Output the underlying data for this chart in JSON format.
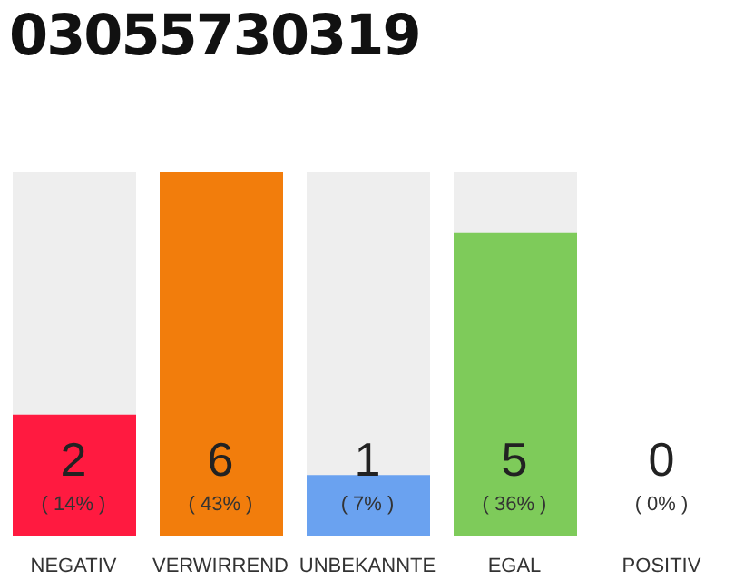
{
  "chart_data": {
    "type": "bar",
    "title": "03055730319",
    "categories": [
      "NEGATIV",
      "VERWIRREND",
      "UNBEKANNTE",
      "EGAL",
      "POSITIV"
    ],
    "values": [
      2,
      6,
      1,
      5,
      0
    ],
    "colors": [
      "#ff1a40",
      "#f27d0c",
      "#6aa2f0",
      "#7ecb5a",
      "#d8d8d8"
    ],
    "value_labels": [
      "2\n( 14% )",
      "6\n( 43% )",
      "1\n( 7% )",
      "5\n( 36% )",
      "0\n( 0% )"
    ],
    "grid": false,
    "legend": false
  }
}
